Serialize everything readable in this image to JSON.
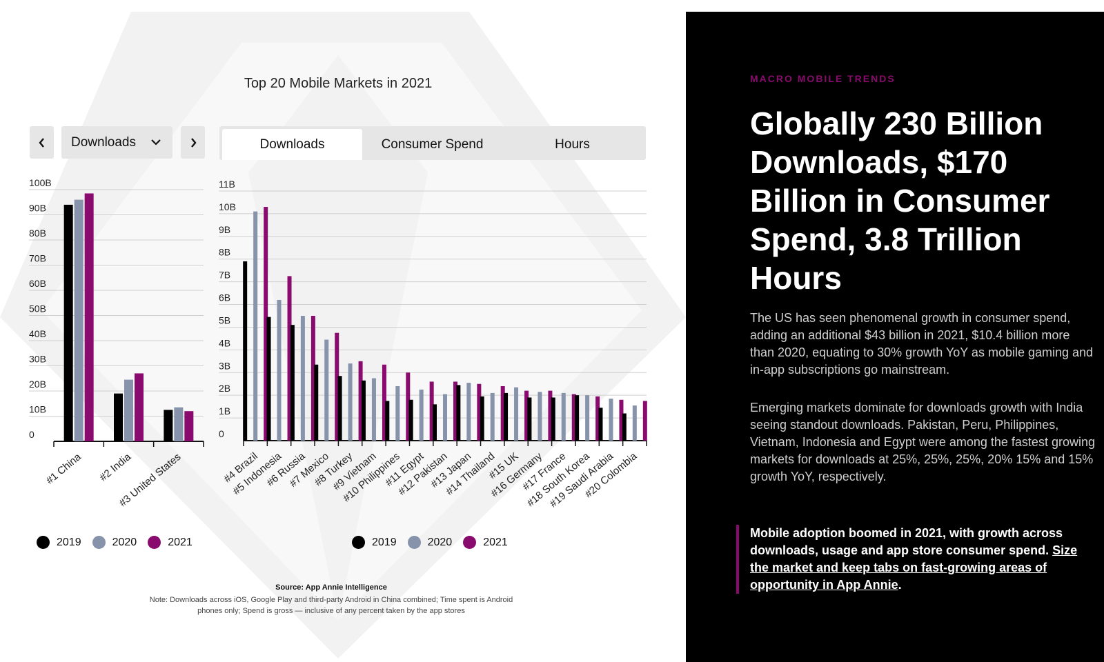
{
  "chart_title": "Top 20 Mobile Markets in 2021",
  "controls": {
    "prev_icon": "chevron-left-icon",
    "next_icon": "chevron-right-icon",
    "metric_select": {
      "value": "Downloads",
      "icon": "chevron-down-icon"
    },
    "tabs": [
      {
        "label": "Downloads",
        "active": true
      },
      {
        "label": "Consumer Spend",
        "active": false
      },
      {
        "label": "Hours",
        "active": false
      }
    ]
  },
  "colors": {
    "y2019": "#000000",
    "y2020": "#8793aa",
    "y2021": "#8a0b6e",
    "accent": "#8a0b6e",
    "panel": "#000000"
  },
  "chart_data": [
    {
      "type": "bar",
      "title": "Top 20 Mobile Markets in 2021",
      "ylim": [
        0,
        100
      ],
      "yticks": [
        "0",
        "10B",
        "20B",
        "30B",
        "40B",
        "50B",
        "60B",
        "70B",
        "80B",
        "90B",
        "100B"
      ],
      "categories": [
        "#1 China",
        "#2 India",
        "#3 United States"
      ],
      "series": [
        {
          "name": "2019",
          "values": [
            94,
            19,
            12.5
          ]
        },
        {
          "name": "2020",
          "values": [
            96,
            24.5,
            13.5
          ]
        },
        {
          "name": "2021",
          "values": [
            98.5,
            27,
            12
          ]
        }
      ],
      "unit": "B"
    },
    {
      "type": "bar",
      "ylim": [
        0,
        11
      ],
      "yticks": [
        "0",
        "1B",
        "2B",
        "3B",
        "4B",
        "5B",
        "6B",
        "7B",
        "8B",
        "9B",
        "10B",
        "11B"
      ],
      "categories": [
        "#4 Brazil",
        "#5 Indonesia",
        "#6 Russia",
        "#7 Mexico",
        "#8 Turkey",
        "#9 Vietnam",
        "#10 Philippines",
        "#11 Egypt",
        "#12 Pakistan",
        "#13 Japan",
        "#14 Thailand",
        "#15 UK",
        "#16 Germany",
        "#17 France",
        "#18 South Korea",
        "#19 Saudi Arabia",
        "#20 Colombia"
      ],
      "series": [
        {
          "name": "2019",
          "values": [
            7.9,
            5.45,
            5.1,
            3.35,
            2.85,
            2.65,
            1.75,
            1.8,
            1.6,
            2.45,
            1.95,
            2.1,
            1.9,
            1.9,
            2.0,
            1.45,
            1.2
          ]
        },
        {
          "name": "2020",
          "values": [
            10.1,
            6.2,
            5.5,
            4.45,
            3.4,
            2.75,
            2.4,
            2.25,
            2.05,
            2.55,
            2.1,
            2.35,
            2.15,
            2.1,
            2.0,
            1.85,
            1.55
          ]
        },
        {
          "name": "2021",
          "values": [
            10.3,
            7.25,
            5.5,
            4.75,
            3.5,
            3.35,
            3.0,
            2.6,
            2.6,
            2.5,
            2.4,
            2.2,
            2.2,
            2.05,
            1.95,
            1.8,
            1.75
          ]
        }
      ],
      "unit": "B"
    }
  ],
  "legend": [
    "2019",
    "2020",
    "2021"
  ],
  "source": "Source: App Annie Intelligence",
  "note_line1": "Note: Downloads across iOS, Google Play and third-party Android in China combined; Time spent is Android",
  "note_line2": "phones only; Spend is gross — inclusive of any percent taken by the app stores",
  "panel": {
    "eyebrow": "MACRO MOBILE TRENDS",
    "headline": "Globally 230 Billion Downloads, $170 Billion in Consumer Spend, 3.8 Trillion Hours",
    "para1": "The US has seen phenomenal growth in consumer spend, adding an additional $43 billion in 2021, $10.4 billion more than 2020, equating to 30% growth YoY as mobile gaming and in-app subscriptions go mainstream.",
    "para2": "Emerging markets dominate for downloads growth with India seeing standout downloads. Pakistan, Peru, Philippines, Vietnam, Indonesia and Egypt were among the fastest growing markets for downloads at 25%, 25%, 25%, 20% 15% and 15% growth YoY, respectively.",
    "callout_text": "Mobile adoption boomed in 2021, with growth across downloads, usage and app store consumer spend.",
    "callout_link": "Size the market and keep tabs on fast-growing areas of opportunity in App Annie",
    "callout_end": "."
  }
}
